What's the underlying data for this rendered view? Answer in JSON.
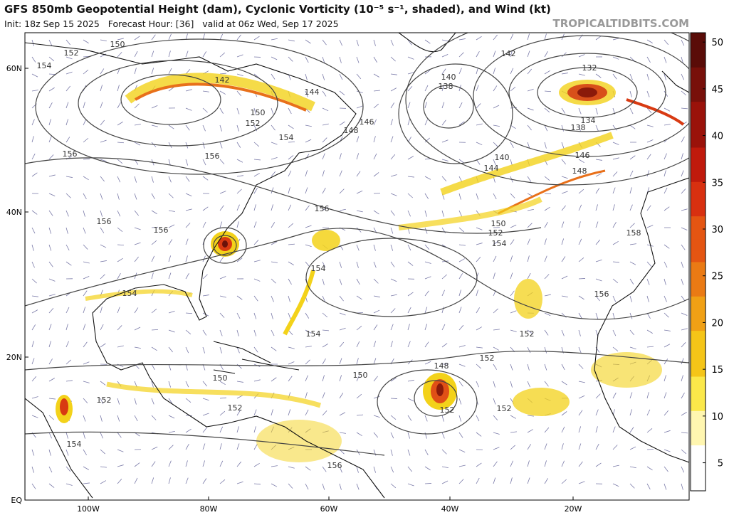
{
  "header": {
    "title": "GFS 850mb Geopotential Height (dam), Cyclonic Vorticity (10⁻⁵ s⁻¹, shaded), and Wind (kt)",
    "subtitle": "Init: 18z Sep 15 2025   Forecast Hour: [36]   valid at 06z Wed, Sep 17 2025",
    "credit": "TROPICALTIDBITS.COM"
  },
  "map": {
    "lat_labels": [
      "60N",
      "40N",
      "20N",
      "EQ"
    ],
    "lon_labels": [
      "100W",
      "80W",
      "60W",
      "40W",
      "20W"
    ],
    "contour_labels": [
      "150",
      "152",
      "154",
      "142",
      "144",
      "150",
      "152",
      "154",
      "156",
      "156",
      "156",
      "156",
      "148",
      "146",
      "140",
      "138",
      "132",
      "134",
      "138",
      "142",
      "140",
      "144",
      "146",
      "148",
      "150",
      "152",
      "154",
      "156",
      "158",
      "156",
      "154",
      "154",
      "154",
      "152",
      "152",
      "150",
      "148",
      "152",
      "152",
      "150",
      "152",
      "152",
      "154",
      "156"
    ]
  },
  "colorbar": {
    "range": [
      2,
      51
    ],
    "ticks": [
      5,
      10,
      15,
      20,
      25,
      30,
      35,
      40,
      45,
      50
    ]
  }
}
